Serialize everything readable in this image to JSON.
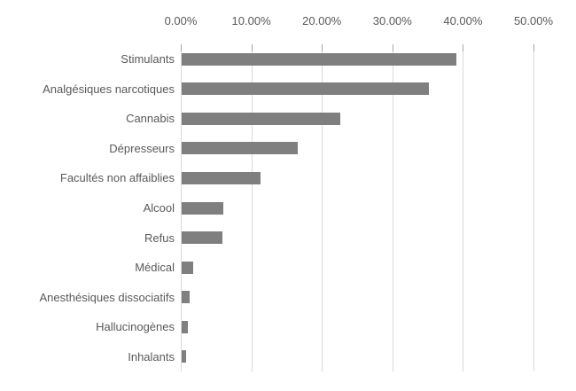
{
  "chart_data": {
    "type": "bar",
    "orientation": "horizontal",
    "title": "",
    "xlabel": "",
    "ylabel": "",
    "categories": [
      "Stimulants",
      "Analgésiques narcotiques",
      "Cannabis",
      "Dépresseurs",
      "Facultés non affaiblies",
      "Alcool",
      "Refus",
      "Médical",
      "Anesthésiques dissociatifs",
      "Hallucinogènes",
      "Inhalants"
    ],
    "values": [
      39.0,
      35.0,
      22.5,
      16.5,
      11.2,
      5.9,
      5.8,
      1.6,
      1.1,
      0.9,
      0.6
    ],
    "xlim": [
      0,
      50
    ],
    "x_tick_values": [
      0,
      10,
      20,
      30,
      40,
      50
    ],
    "x_tick_labels": [
      "0.00%",
      "10.00%",
      "20.00%",
      "30.00%",
      "40.00%",
      "50.00%"
    ],
    "grid": true,
    "legend": false,
    "axis_position": "top"
  },
  "colors": {
    "bar": "#7f7f7f",
    "gridline": "#d9d9d9",
    "axis_tick": "#a6a6a6",
    "text": "#595959",
    "background": "#ffffff"
  }
}
